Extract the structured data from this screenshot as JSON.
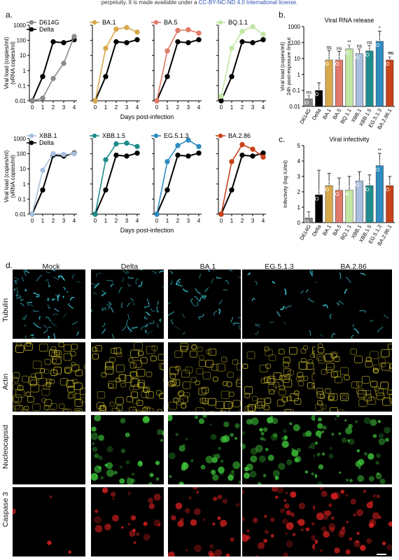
{
  "banner": {
    "prefix": "perpetuity. It is made available under a ",
    "license": "CC-BY-NC-ND 4.0 International license."
  },
  "panel_labels": {
    "a": "a.",
    "b": "b.",
    "c": "c.",
    "d": "d."
  },
  "growth": {
    "ylabel_line1": "Viral load (copies/ml)",
    "ylabel_line2": "(vRNA copies/ml)",
    "xlabel": "Days post-infection",
    "ytick_labels": [
      "0.01",
      "0.1",
      "1",
      "10",
      "100",
      "1000"
    ],
    "xtick_labels": [
      "0",
      "1",
      "2",
      "3",
      "4"
    ]
  },
  "bars": {
    "b_title": "Viral RNA release",
    "b_ylabel_1": "Viral load (copies/ml)",
    "b_ylabel_2": "24h post-exposure /input",
    "b_ticks": [
      "0.01",
      "0.1",
      "1",
      "10",
      "100",
      "1000"
    ],
    "c_title": "Viral infectivity",
    "c_ylabel": "Infectivity (log IU/ml)",
    "c_ticks": [
      "0",
      "1",
      "2",
      "3",
      "4",
      "5"
    ]
  },
  "micro": {
    "columns": [
      "Mock",
      "Delta",
      "BA.1",
      "EG.5.1.3",
      "BA.2.86"
    ],
    "rows": [
      "Tubulin",
      "Actin",
      "Nucleocapsid",
      "Caspase 3"
    ]
  },
  "colors": {
    "D614G": "#8a8a8a",
    "Delta": "#000000",
    "BA.1": "#d8a84b",
    "BA.5": "#e07a6b",
    "BQ.1.1": "#c3e6a4",
    "XBB.1": "#a9bfde",
    "XBB.1.5": "#1e8c8c",
    "EG.5.1.3": "#2e8cc0",
    "BA.2.86": "#c8431a",
    "tubulin": "#3ac8d6",
    "actin": "#d6c62a",
    "nucleocapsid": "#3fc63a",
    "caspase": "#e42222"
  },
  "chart_data": [
    {
      "type": "line",
      "panel": "a-top-1",
      "yscale": "log",
      "ylim": [
        0.01,
        1000
      ],
      "x": [
        0,
        1,
        2,
        3,
        4
      ],
      "series": [
        {
          "name": "D614G",
          "values": [
            0.01,
            0.015,
            0.3,
            3,
            180
          ]
        },
        {
          "name": "Delta",
          "values": [
            0.01,
            0.4,
            80,
            70,
            110
          ]
        }
      ]
    },
    {
      "type": "line",
      "panel": "a-top-2",
      "yscale": "log",
      "ylim": [
        0.01,
        1000
      ],
      "x": [
        0,
        1,
        2,
        3,
        4
      ],
      "series": [
        {
          "name": "BA.1",
          "values": [
            0.01,
            30,
            550,
            700,
            350
          ]
        },
        {
          "name": "",
          "values": [
            0.01,
            0.4,
            80,
            70,
            110
          ]
        }
      ]
    },
    {
      "type": "line",
      "panel": "a-top-3",
      "yscale": "log",
      "ylim": [
        0.01,
        1000
      ],
      "x": [
        0,
        1,
        2,
        3,
        4
      ],
      "series": [
        {
          "name": "BA.5",
          "values": [
            0.01,
            20,
            450,
            500,
            300
          ]
        },
        {
          "name": "",
          "values": [
            0.01,
            0.4,
            80,
            70,
            110
          ]
        }
      ]
    },
    {
      "type": "line",
      "panel": "a-top-4",
      "yscale": "log",
      "ylim": [
        0.01,
        1000
      ],
      "x": [
        0,
        1,
        2,
        3,
        4
      ],
      "series": [
        {
          "name": "BQ.1.1",
          "values": [
            0.02,
            30,
            400,
            800,
            250
          ]
        },
        {
          "name": "",
          "values": [
            0.01,
            0.4,
            80,
            70,
            110
          ]
        }
      ]
    },
    {
      "type": "line",
      "panel": "a-bot-1",
      "yscale": "log",
      "ylim": [
        0.01,
        1000
      ],
      "x": [
        0,
        1,
        2,
        3,
        4
      ],
      "series": [
        {
          "name": "XBB.1",
          "values": [
            0.01,
            8,
            100,
            90,
            100
          ]
        },
        {
          "name": "Delta",
          "values": [
            0.01,
            0.4,
            80,
            70,
            110
          ]
        }
      ]
    },
    {
      "type": "line",
      "panel": "a-bot-2",
      "yscale": "log",
      "ylim": [
        0.01,
        1000
      ],
      "x": [
        0,
        1,
        2,
        3,
        4
      ],
      "series": [
        {
          "name": "XBB.1.5",
          "values": [
            0.01,
            40,
            450,
            500,
            300
          ]
        },
        {
          "name": "",
          "values": [
            0.01,
            0.4,
            80,
            70,
            110
          ]
        }
      ]
    },
    {
      "type": "line",
      "panel": "a-bot-3",
      "yscale": "log",
      "ylim": [
        0.01,
        1000
      ],
      "x": [
        0,
        1,
        2,
        3,
        4
      ],
      "series": [
        {
          "name": "EG.5.1.3",
          "values": [
            0.01,
            30,
            350,
            800,
            300
          ]
        },
        {
          "name": "",
          "values": [
            0.01,
            0.4,
            80,
            70,
            110
          ]
        }
      ]
    },
    {
      "type": "line",
      "panel": "a-bot-4",
      "yscale": "log",
      "ylim": [
        0.01,
        1000
      ],
      "x": [
        0,
        1,
        2,
        3,
        4
      ],
      "series": [
        {
          "name": "BA.2.86",
          "values": [
            0.01,
            30,
            400,
            200,
            60
          ]
        },
        {
          "name": "",
          "values": [
            0.01,
            0.4,
            80,
            70,
            110
          ]
        }
      ]
    },
    {
      "type": "bar",
      "panel": "b",
      "yscale": "log",
      "ylim": [
        0.01,
        1000
      ],
      "categories": [
        "D614G",
        "Delta",
        "BA.1",
        "BA.5",
        "BQ.1.1",
        "XBB.1",
        "XBB.1.5",
        "EG.5.1.3",
        "BA.2.86.1"
      ],
      "values": [
        0.03,
        0.1,
        8,
        8,
        40,
        20,
        30,
        120,
        8
      ],
      "errors": [
        0.02,
        0.2,
        25,
        20,
        30,
        20,
        35,
        400,
        5
      ],
      "labels": [
        "ns",
        "",
        "ns",
        "ns",
        "**",
        "ns",
        "ns",
        "*",
        "**"
      ],
      "labels2": [
        "",
        "",
        "",
        "",
        "",
        "",
        "",
        "",
        "ns"
      ]
    },
    {
      "type": "bar",
      "panel": "c",
      "ylim": [
        0,
        5
      ],
      "categories": [
        "D614G",
        "Delta",
        "BA.1",
        "BA.5",
        "BQ.1.1",
        "XBB.1",
        "XBB.1.5",
        "EG.5.1.3",
        "BA.2.86.1"
      ],
      "values": [
        0.3,
        1.8,
        2.4,
        2.1,
        2.1,
        2.7,
        2.4,
        3.7,
        2.4
      ],
      "errors": [
        0.4,
        1.6,
        0.8,
        0.8,
        0.9,
        0.6,
        0.7,
        0.8,
        0.6
      ],
      "labels": [
        "",
        "",
        "",
        "",
        "",
        "",
        "",
        "**",
        ""
      ]
    }
  ]
}
